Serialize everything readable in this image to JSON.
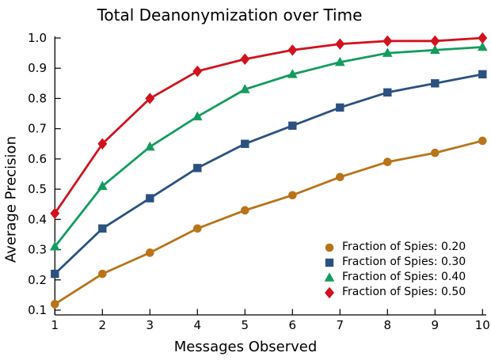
{
  "figure": {
    "title": "Total Deanonymization over Time",
    "xlabel": "Messages Observed",
    "ylabel": "Average Precision"
  },
  "chart_data": {
    "type": "line",
    "title": "Total Deanonymization over Time",
    "xlabel": "Messages Observed",
    "ylabel": "Average Precision",
    "x": [
      1,
      2,
      3,
      4,
      5,
      6,
      7,
      8,
      9,
      10
    ],
    "x_tick_labels": [
      "1",
      "2",
      "3",
      "4",
      "5",
      "6",
      "7",
      "8",
      "9",
      "10"
    ],
    "y_tick_labels": [
      "1.0",
      "0.9",
      "0.8",
      "0.7",
      "0.6",
      "0.5",
      "0.4",
      "0.3",
      "0.2",
      "0.1"
    ],
    "xlim": [
      1,
      10
    ],
    "ylim": [
      0.08,
      1.0
    ],
    "grid": false,
    "legend": {
      "position": "lower right",
      "frame": false
    },
    "series": [
      {
        "name": "Fraction of Spies: 0.20",
        "marker": "circle",
        "color": "#B8741A",
        "values": [
          0.12,
          0.22,
          0.29,
          0.37,
          0.43,
          0.48,
          0.54,
          0.59,
          0.62,
          0.66
        ]
      },
      {
        "name": "Fraction of Spies: 0.30",
        "marker": "square",
        "color": "#2B5181",
        "values": [
          0.22,
          0.37,
          0.47,
          0.57,
          0.65,
          0.71,
          0.77,
          0.82,
          0.85,
          0.88
        ]
      },
      {
        "name": "Fraction of Spies: 0.40",
        "marker": "triangle",
        "color": "#149C60",
        "values": [
          0.31,
          0.51,
          0.64,
          0.74,
          0.83,
          0.88,
          0.92,
          0.95,
          0.96,
          0.97
        ]
      },
      {
        "name": "Fraction of Spies: 0.50",
        "marker": "diamond",
        "color": "#D2121E",
        "values": [
          0.42,
          0.65,
          0.8,
          0.89,
          0.93,
          0.96,
          0.98,
          0.99,
          0.99,
          1.0
        ]
      }
    ]
  }
}
